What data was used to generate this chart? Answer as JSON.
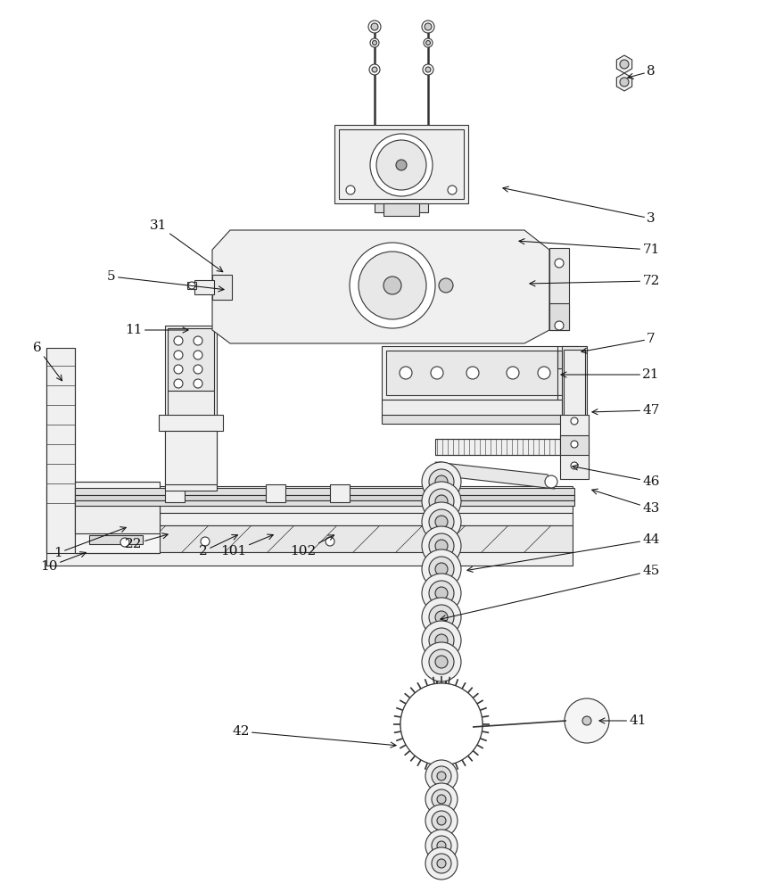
{
  "bg_color": "#ffffff",
  "line_color": "#333333",
  "label_color": "#111111",
  "lw": 0.8,
  "labels_data": [
    [
      "1",
      65,
      620,
      145,
      590
    ],
    [
      "2",
      228,
      618,
      270,
      598
    ],
    [
      "3",
      730,
      245,
      560,
      210
    ],
    [
      "5",
      125,
      310,
      255,
      325
    ],
    [
      "6",
      42,
      390,
      72,
      430
    ],
    [
      "7",
      730,
      380,
      648,
      395
    ],
    [
      "8",
      730,
      80,
      700,
      88
    ],
    [
      "10",
      55,
      635,
      100,
      618
    ],
    [
      "11",
      150,
      370,
      215,
      370
    ],
    [
      "21",
      730,
      420,
      625,
      420
    ],
    [
      "22",
      150,
      610,
      192,
      598
    ],
    [
      "31",
      178,
      253,
      253,
      307
    ],
    [
      "41",
      715,
      808,
      668,
      808
    ],
    [
      "42",
      270,
      820,
      448,
      836
    ],
    [
      "43",
      730,
      570,
      660,
      548
    ],
    [
      "44",
      730,
      605,
      520,
      640
    ],
    [
      "45",
      730,
      640,
      490,
      695
    ],
    [
      "46",
      730,
      540,
      638,
      522
    ],
    [
      "47",
      730,
      460,
      660,
      462
    ],
    [
      "71",
      730,
      280,
      578,
      270
    ],
    [
      "72",
      730,
      315,
      590,
      318
    ],
    [
      "101",
      262,
      618,
      310,
      598
    ],
    [
      "102",
      340,
      618,
      378,
      598
    ]
  ]
}
